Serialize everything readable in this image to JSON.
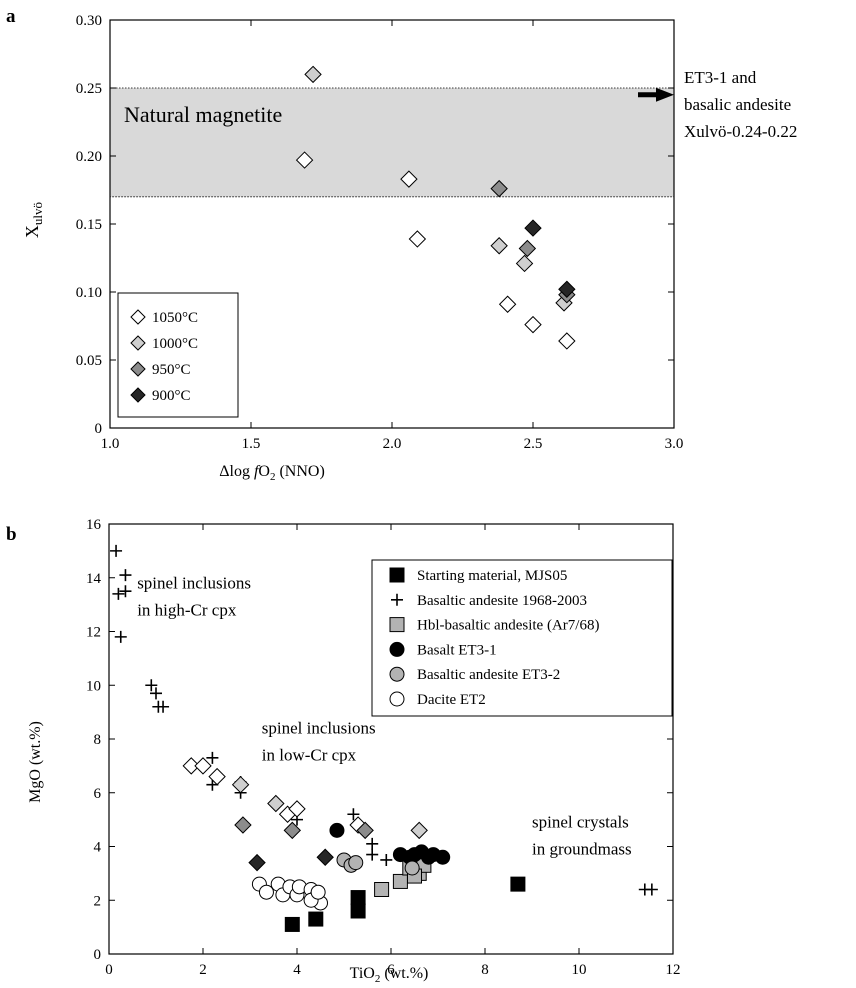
{
  "chart_data": [
    {
      "panel": "a",
      "type": "scatter",
      "xlabel_prefix": "Δlog ",
      "xlabel_italic": "f",
      "xlabel_mid": "O",
      "xlabel_sub": "2",
      "xlabel_suffix": " (NNO)",
      "ylabel_main": "X",
      "ylabel_sub": "ulvö",
      "xlim": [
        1.0,
        3.0
      ],
      "ylim": [
        0,
        0.3
      ],
      "xticks": [
        "1.0",
        "1.5",
        "2.0",
        "2.5",
        "3.0"
      ],
      "xtick_values": [
        1.0,
        1.5,
        2.0,
        2.5,
        3.0
      ],
      "yticks": [
        "0",
        "0.05",
        "0.10",
        "0.15",
        "0.20",
        "0.25",
        "0.30"
      ],
      "ytick_values": [
        0,
        0.05,
        0.1,
        0.15,
        0.2,
        0.25,
        0.3
      ],
      "band": {
        "label": "Natural magnetite",
        "y_range": [
          0.17,
          0.25
        ],
        "color": "#d9d9d9"
      },
      "annotation": {
        "lines": [
          "ET3-1 and",
          "basalic andesite",
          "Xulvö-0.24-0.22"
        ],
        "arrow_y": 0.245
      },
      "legend_placement": "bottom-left",
      "series": [
        {
          "name": "1050°C",
          "marker": "diamond",
          "fill": "#ffffff",
          "points": [
            [
              1.69,
              0.197
            ],
            [
              2.06,
              0.183
            ],
            [
              2.09,
              0.139
            ],
            [
              2.41,
              0.091
            ],
            [
              2.5,
              0.076
            ],
            [
              2.62,
              0.064
            ]
          ]
        },
        {
          "name": "1000°C",
          "marker": "diamond",
          "fill": "#cfcfcf",
          "points": [
            [
              1.72,
              0.26
            ],
            [
              2.38,
              0.134
            ],
            [
              2.47,
              0.121
            ],
            [
              2.61,
              0.092
            ]
          ]
        },
        {
          "name": "950°C",
          "marker": "diamond",
          "fill": "#8c8c8c",
          "points": [
            [
              2.38,
              0.176
            ],
            [
              2.48,
              0.132
            ],
            [
              2.62,
              0.098
            ]
          ]
        },
        {
          "name": "900°C",
          "marker": "diamond",
          "fill": "#262626",
          "points": [
            [
              2.5,
              0.147
            ],
            [
              2.62,
              0.102
            ]
          ]
        }
      ]
    },
    {
      "panel": "b",
      "type": "scatter",
      "xlabel_main": "TiO",
      "xlabel_sub": "2",
      "xlabel_suffix": " (wt.%)",
      "ylabel": "MgO (wt.%)",
      "xlim": [
        0,
        12
      ],
      "ylim": [
        0,
        16
      ],
      "xticks": [
        "0",
        "2",
        "4",
        "6",
        "8",
        "10",
        "12"
      ],
      "xtick_values": [
        0,
        2,
        4,
        6,
        8,
        10,
        12
      ],
      "yticks": [
        "0",
        "2",
        "4",
        "6",
        "8",
        "10",
        "12",
        "14",
        "16"
      ],
      "ytick_values": [
        0,
        2,
        4,
        6,
        8,
        10,
        12,
        14,
        16
      ],
      "annotations": [
        {
          "lines": [
            "spinel inclusions",
            "in high-Cr cpx"
          ],
          "x": 0.6,
          "y": 13.6
        },
        {
          "lines": [
            "spinel inclusions",
            "in low-Cr cpx"
          ],
          "x": 3.25,
          "y": 8.2
        },
        {
          "lines": [
            "spinel crystals",
            "in groundmass"
          ],
          "x": 9.0,
          "y": 4.7
        }
      ],
      "legend_placement": "top-right",
      "series": [
        {
          "name": "Starting material, MJS05",
          "marker": "square",
          "fill": "#000000",
          "points": [
            [
              3.9,
              1.1
            ],
            [
              4.4,
              1.3
            ],
            [
              5.3,
              1.6
            ],
            [
              5.3,
              2.1
            ],
            [
              8.7,
              2.6
            ]
          ]
        },
        {
          "name": "Basaltic andesite 1968-2003",
          "marker": "plus",
          "fill": "#000000",
          "points": [
            [
              0.15,
              15.0
            ],
            [
              0.35,
              14.1
            ],
            [
              0.2,
              13.4
            ],
            [
              0.35,
              13.5
            ],
            [
              0.25,
              11.8
            ],
            [
              0.9,
              10.0
            ],
            [
              1.0,
              9.7
            ],
            [
              1.05,
              9.2
            ],
            [
              1.15,
              9.2
            ],
            [
              2.2,
              7.3
            ],
            [
              2.2,
              6.3
            ],
            [
              2.8,
              6.0
            ],
            [
              2.8,
              6.4
            ],
            [
              4.0,
              5.0
            ],
            [
              5.2,
              5.2
            ],
            [
              5.6,
              4.1
            ],
            [
              5.6,
              3.7
            ],
            [
              5.9,
              3.5
            ],
            [
              11.4,
              2.4
            ],
            [
              11.55,
              2.4
            ]
          ]
        },
        {
          "name": "Hbl-basaltic andesite (Ar7/68)",
          "marker": "square",
          "fill": "#b3b3b3",
          "points": [
            [
              5.8,
              2.4
            ],
            [
              6.2,
              2.7
            ],
            [
              6.4,
              3.2
            ],
            [
              6.6,
              3.0
            ],
            [
              6.7,
              3.3
            ],
            [
              6.5,
              2.9
            ]
          ]
        },
        {
          "name": "Basalt ET3-1",
          "marker": "circle",
          "fill": "#000000",
          "points": [
            [
              4.85,
              4.6
            ],
            [
              6.2,
              3.7
            ],
            [
              6.4,
              3.6
            ],
            [
              6.5,
              3.7
            ],
            [
              6.65,
              3.8
            ],
            [
              6.8,
              3.6
            ],
            [
              6.9,
              3.7
            ],
            [
              7.1,
              3.6
            ]
          ]
        },
        {
          "name": "Basaltic andesite ET3-2",
          "marker": "circle",
          "fill": "#b3b3b3",
          "points": [
            [
              5.0,
              3.5
            ],
            [
              5.15,
              3.3
            ],
            [
              5.25,
              3.4
            ],
            [
              6.45,
              3.2
            ]
          ]
        },
        {
          "name": "Dacite ET2",
          "marker": "circle",
          "fill": "#ffffff",
          "points": [
            [
              3.2,
              2.6
            ],
            [
              3.35,
              2.3
            ],
            [
              3.6,
              2.6
            ],
            [
              3.7,
              2.2
            ],
            [
              3.85,
              2.5
            ],
            [
              4.0,
              2.2
            ],
            [
              4.05,
              2.5
            ],
            [
              4.3,
              2.4
            ],
            [
              4.4,
              2.1
            ],
            [
              4.5,
              1.9
            ],
            [
              4.3,
              2.0
            ],
            [
              4.45,
              2.3
            ]
          ]
        },
        {
          "name": "",
          "legend": false,
          "marker": "diamond",
          "fill": "#ffffff",
          "points": [
            [
              1.75,
              7.0
            ],
            [
              2.0,
              7.0
            ],
            [
              2.3,
              6.6
            ],
            [
              3.8,
              5.2
            ],
            [
              4.0,
              5.4
            ],
            [
              5.3,
              4.8
            ]
          ]
        },
        {
          "name": "",
          "legend": false,
          "marker": "diamond",
          "fill": "#cfcfcf",
          "points": [
            [
              2.8,
              6.3
            ],
            [
              3.55,
              5.6
            ],
            [
              6.6,
              4.6
            ]
          ]
        },
        {
          "name": "",
          "legend": false,
          "marker": "diamond",
          "fill": "#8c8c8c",
          "points": [
            [
              2.85,
              4.8
            ],
            [
              3.9,
              4.6
            ],
            [
              5.45,
              4.6
            ]
          ]
        },
        {
          "name": "",
          "legend": false,
          "marker": "diamond",
          "fill": "#262626",
          "points": [
            [
              3.15,
              3.4
            ],
            [
              4.6,
              3.6
            ]
          ]
        }
      ]
    }
  ]
}
